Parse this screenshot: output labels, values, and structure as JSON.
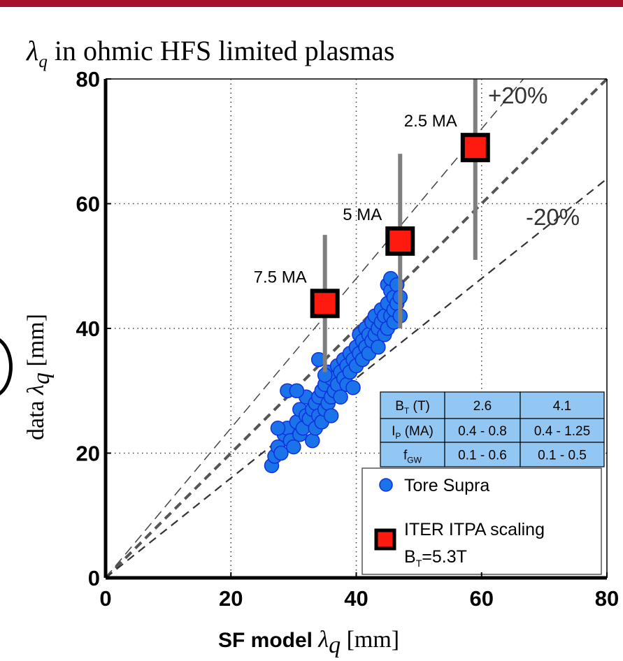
{
  "chart_data": {
    "type": "scatter",
    "title_parts": {
      "sym": "λ",
      "sub": "q",
      "rest": " in ohmic HFS limited plasmas"
    },
    "xlabel_parts": {
      "prefix": "SF model ",
      "sym": "λ",
      "sub": "q",
      "unit": " [mm]"
    },
    "ylabel_parts": {
      "prefix": "data ",
      "sym": "λ",
      "sub": "q",
      "unit": " [mm]"
    },
    "xlim": [
      0,
      80
    ],
    "ylim": [
      0,
      80
    ],
    "xticks": [
      "0",
      "20",
      "40",
      "60",
      "80"
    ],
    "yticks": [
      "0",
      "20",
      "40",
      "60",
      "80"
    ],
    "grid": "dotted",
    "reference_lines": [
      {
        "label": "+20%",
        "slope": 1.2
      },
      {
        "label": "",
        "slope": 1.0
      },
      {
        "label": "-20%",
        "slope": 0.8
      }
    ],
    "series": [
      {
        "name": "Tore Supra",
        "color": "#1a73e8",
        "marker": "circle",
        "points": [
          [
            26.5,
            18
          ],
          [
            27,
            19.5
          ],
          [
            27.5,
            21
          ],
          [
            28,
            20
          ],
          [
            28.5,
            23
          ],
          [
            29,
            24
          ],
          [
            29.5,
            22
          ],
          [
            30,
            21
          ],
          [
            30.5,
            25
          ],
          [
            31,
            27
          ],
          [
            31,
            23
          ],
          [
            31.5,
            24
          ],
          [
            32,
            26
          ],
          [
            32,
            29
          ],
          [
            32.5,
            25.5
          ],
          [
            33,
            22
          ],
          [
            33,
            27
          ],
          [
            33.5,
            24
          ],
          [
            33.5,
            28
          ],
          [
            34,
            26
          ],
          [
            34,
            29
          ],
          [
            34.5,
            25
          ],
          [
            34.5,
            30
          ],
          [
            35,
            27
          ],
          [
            35,
            31
          ],
          [
            35.5,
            28
          ],
          [
            35.5,
            33
          ],
          [
            36,
            26
          ],
          [
            36,
            29
          ],
          [
            36,
            32
          ],
          [
            36.5,
            30
          ],
          [
            37,
            31
          ],
          [
            37,
            34
          ],
          [
            37.5,
            29
          ],
          [
            37.5,
            33
          ],
          [
            38,
            32
          ],
          [
            38,
            35
          ],
          [
            38.5,
            31
          ],
          [
            38.5,
            34
          ],
          [
            39,
            33
          ],
          [
            39,
            36
          ],
          [
            39.5,
            30.5
          ],
          [
            39.5,
            35
          ],
          [
            40,
            34
          ],
          [
            40,
            37
          ],
          [
            40.5,
            36
          ],
          [
            40.5,
            39
          ],
          [
            41,
            35
          ],
          [
            41,
            38
          ],
          [
            41.5,
            37
          ],
          [
            41.5,
            40
          ],
          [
            42,
            36
          ],
          [
            42,
            39
          ],
          [
            42.5,
            38
          ],
          [
            42.5,
            41
          ],
          [
            43,
            39
          ],
          [
            43,
            42
          ],
          [
            43.5,
            37
          ],
          [
            43.5,
            40
          ],
          [
            44,
            41
          ],
          [
            44,
            43
          ],
          [
            44.5,
            39
          ],
          [
            44.5,
            42
          ],
          [
            45,
            40
          ],
          [
            45,
            44
          ],
          [
            45,
            47
          ],
          [
            45.5,
            42
          ],
          [
            45.5,
            46
          ],
          [
            45.5,
            48
          ],
          [
            46,
            41
          ],
          [
            46,
            43
          ],
          [
            46,
            45
          ],
          [
            46.5,
            44
          ],
          [
            46.5,
            47
          ],
          [
            47,
            42
          ],
          [
            47,
            45
          ],
          [
            29,
            30
          ],
          [
            30.5,
            30
          ],
          [
            34,
            35
          ],
          [
            35,
            32.5
          ],
          [
            27.5,
            24
          ]
        ]
      },
      {
        "name": "ITER ITPA scaling",
        "name_line2": "B_T=5.3T",
        "color": "#ff1a10",
        "marker": "square",
        "points": [
          {
            "x": 35,
            "y": 44,
            "yerr_low": 33,
            "yerr_high": 55,
            "label": "7.5 MA"
          },
          {
            "x": 47,
            "y": 54,
            "yerr_low": 40,
            "yerr_high": 68,
            "label": "5 MA"
          },
          {
            "x": 59,
            "y": 69,
            "yerr_low": 51,
            "yerr_high": 80,
            "label": "2.5 MA"
          }
        ]
      }
    ],
    "table": {
      "rows": [
        {
          "label": "B",
          "label_sub": "T",
          "label_rest": " (T)",
          "col1": "2.6",
          "col2": "4.1"
        },
        {
          "label": "I",
          "label_sub": "P",
          "label_rest": " (MA)",
          "col1": "0.4 - 0.8",
          "col2": "0.4 - 1.25"
        },
        {
          "label": "f",
          "label_sub": "GW",
          "label_rest": "",
          "col1": "0.1 - 0.6",
          "col2": "0.1 - 0.5"
        }
      ],
      "fill": "#93c7f3"
    },
    "legend_position": "bottom-right"
  }
}
